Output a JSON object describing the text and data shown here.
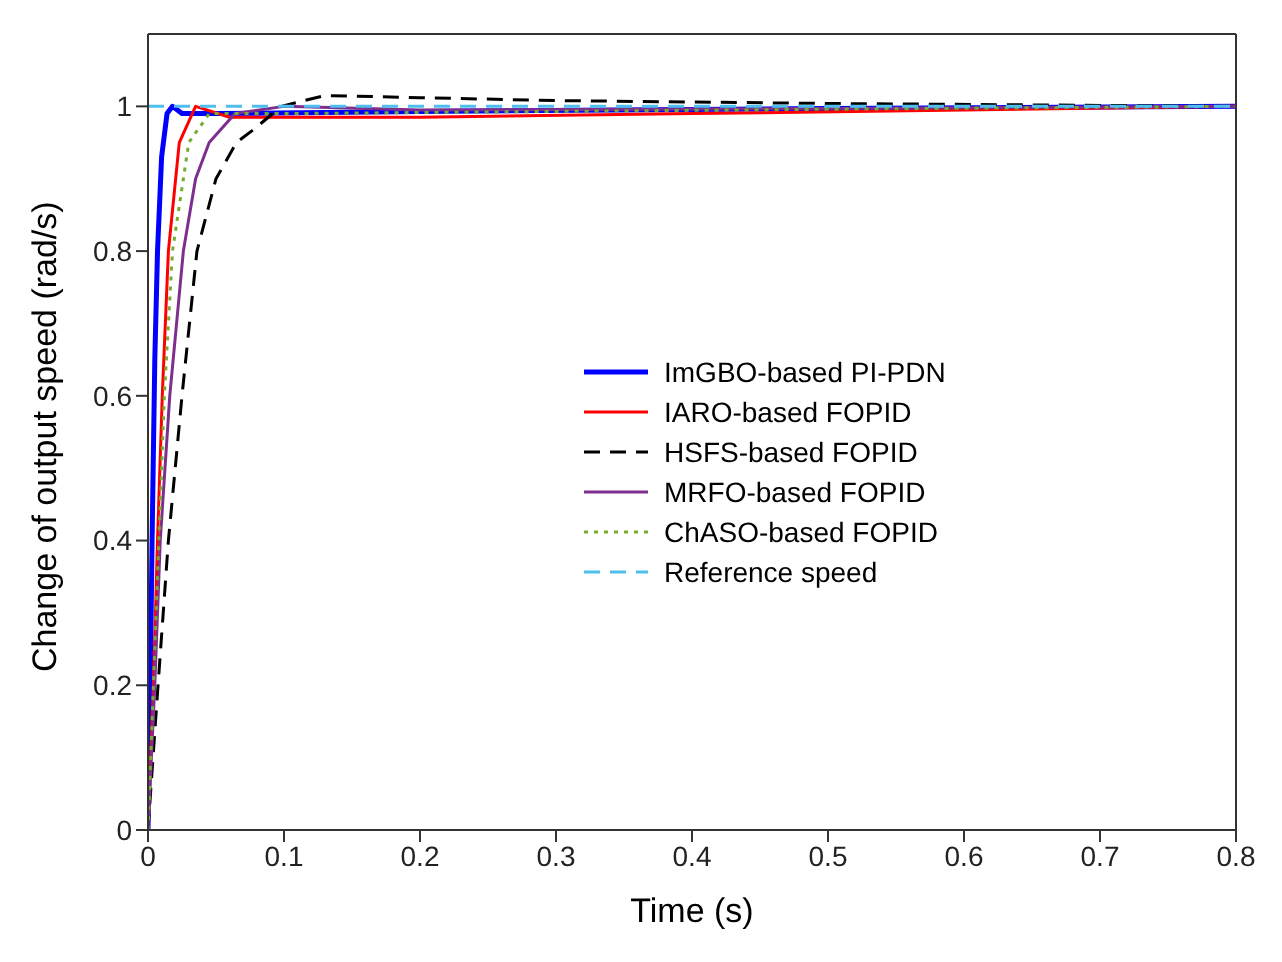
{
  "chart_data": {
    "type": "line",
    "xlabel": "Time (s)",
    "ylabel": "Change of output speed (rad/s)",
    "xlim": [
      0,
      0.8
    ],
    "xticks": [
      0,
      0.1,
      0.2,
      0.3,
      0.4,
      0.5,
      0.6,
      0.7,
      0.8
    ],
    "ylim": [
      0,
      1.1
    ],
    "yticks": [
      0,
      0.2,
      0.4,
      0.6,
      0.8,
      1
    ],
    "grid": false,
    "legend": "right",
    "marker": "none",
    "series": [
      {
        "name": "ImGBO-based PI-PDN",
        "color": "#0000ff",
        "line_style": "solid",
        "x": [
          0,
          0.002,
          0.003,
          0.005,
          0.007,
          0.01,
          0.014,
          0.018,
          0.025,
          0.05,
          0.2,
          0.5,
          0.8
        ],
        "values": [
          0,
          0.25,
          0.4,
          0.65,
          0.8,
          0.93,
          0.99,
          1.0,
          0.99,
          0.99,
          0.993,
          0.997,
          1.0
        ]
      },
      {
        "name": "IARO-based FOPID",
        "color": "#ff0000",
        "line_style": "solid",
        "x": [
          0,
          0.004,
          0.007,
          0.0105,
          0.015,
          0.023,
          0.035,
          0.06,
          0.2,
          0.4,
          0.6,
          0.8
        ],
        "values": [
          0,
          0.2,
          0.4,
          0.6,
          0.8,
          0.95,
          1.0,
          0.985,
          0.985,
          0.99,
          0.995,
          1.0
        ]
      },
      {
        "name": "HSFS-based FOPID",
        "color": "#000000",
        "line_style": "dashed",
        "x": [
          0,
          0.007,
          0.015,
          0.025,
          0.036,
          0.05,
          0.065,
          0.079,
          0.098,
          0.13,
          0.2,
          0.3,
          0.5,
          0.8
        ],
        "values": [
          0,
          0.19,
          0.4,
          0.6,
          0.8,
          0.9,
          0.95,
          0.97,
          1.0,
          1.015,
          1.012,
          1.008,
          1.004,
          1.0
        ]
      },
      {
        "name": "MRFO-based FOPID",
        "color": "#7e2f8e",
        "line_style": "solid",
        "x": [
          0,
          0.005,
          0.009,
          0.016,
          0.026,
          0.035,
          0.045,
          0.064,
          0.1,
          0.2,
          0.5,
          0.8
        ],
        "values": [
          0,
          0.2,
          0.4,
          0.6,
          0.8,
          0.9,
          0.95,
          0.99,
          1.0,
          0.995,
          0.997,
          1.0
        ]
      },
      {
        "name": "ChASO-based FOPID",
        "color": "#77ac30",
        "line_style": "dotted",
        "x": [
          0,
          0.004,
          0.008,
          0.012,
          0.018,
          0.03,
          0.045,
          0.1,
          0.3,
          0.5,
          0.8
        ],
        "values": [
          0,
          0.2,
          0.4,
          0.6,
          0.8,
          0.95,
          0.99,
          0.99,
          0.993,
          0.996,
          1.0
        ]
      },
      {
        "name": "Reference speed",
        "color": "#4dbeee",
        "line_style": "dashed",
        "x": [
          0,
          0.8
        ],
        "values": [
          1,
          1
        ]
      }
    ]
  }
}
